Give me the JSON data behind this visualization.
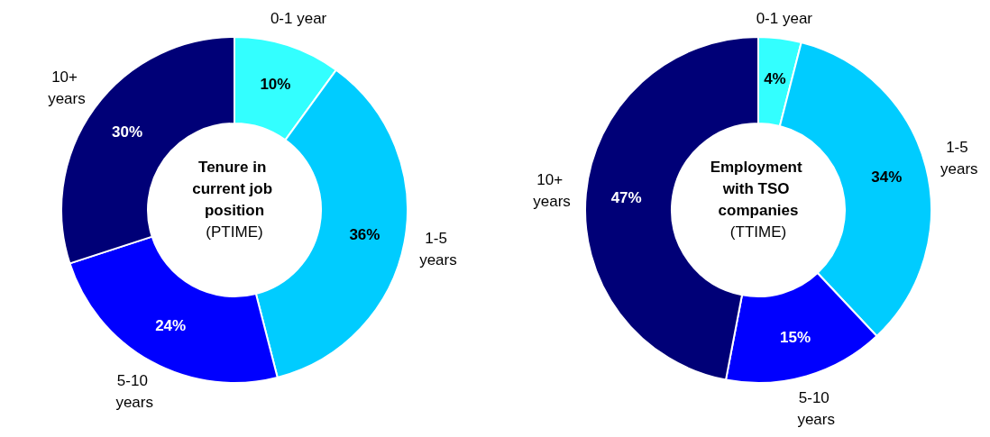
{
  "chart_data": [
    {
      "type": "donut",
      "title": "Tenure in current job position",
      "subtitle": "(PTIME)",
      "categories": [
        "0-1 year",
        "1-5 years",
        "5-10 years",
        "10+ years"
      ],
      "values": [
        10,
        36,
        24,
        30
      ],
      "value_labels": [
        "10%",
        "36%",
        "24%",
        "30%"
      ],
      "colors": [
        "#33ffff",
        "#00ccff",
        "#0000ff",
        "#000077"
      ],
      "legend": false
    },
    {
      "type": "donut",
      "title": "Employment with TSO companies",
      "subtitle": "(TTIME)",
      "categories": [
        "0-1 year",
        "1-5 years",
        "5-10 years",
        "10+ years"
      ],
      "values": [
        4,
        34,
        15,
        47
      ],
      "value_labels": [
        "4%",
        "34%",
        "15%",
        "47%"
      ],
      "colors": [
        "#33ffff",
        "#00ccff",
        "#0000ff",
        "#000077"
      ],
      "legend": false
    }
  ]
}
